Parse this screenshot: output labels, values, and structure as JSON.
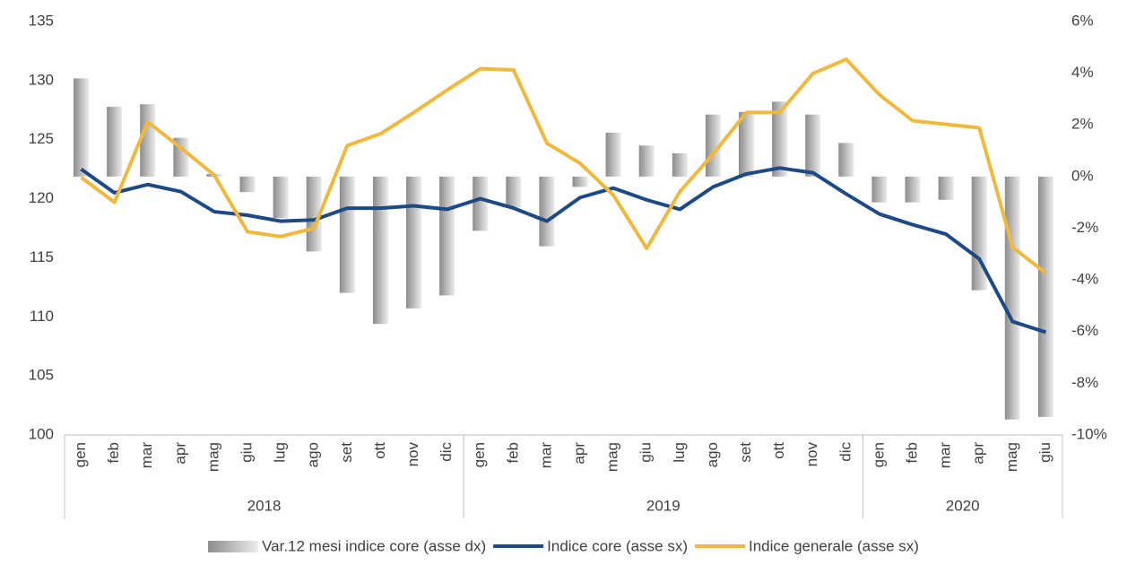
{
  "chart_data": {
    "type": "bar_line",
    "categories": [
      "gen",
      "feb",
      "mar",
      "apr",
      "mag",
      "giu",
      "lug",
      "ago",
      "set",
      "ott",
      "nov",
      "dic",
      "gen",
      "feb",
      "mar",
      "apr",
      "mag",
      "giu",
      "lug",
      "ago",
      "set",
      "ott",
      "nov",
      "dic",
      "gen",
      "feb",
      "mar",
      "apr",
      "mag",
      "giu"
    ],
    "years": [
      "2018",
      "2019",
      "2020"
    ],
    "series": [
      {
        "name": "Var.12 mesi indice core (asse dx)",
        "type": "bar",
        "axis": "y2",
        "color": "#a6a6a6",
        "values": [
          3.8,
          2.7,
          2.8,
          1.5,
          0.1,
          -0.6,
          -1.6,
          -2.9,
          -4.5,
          -5.7,
          -5.1,
          -4.6,
          -2.1,
          -1.2,
          -2.7,
          -0.4,
          1.7,
          1.2,
          0.9,
          2.4,
          2.5,
          2.9,
          2.4,
          1.3,
          -1.0,
          -1.0,
          -0.9,
          -4.4,
          -9.4,
          -9.3
        ]
      },
      {
        "name": "Indice core (asse sx)",
        "type": "line",
        "axis": "y",
        "color": "#1d4a85",
        "values": [
          122.5,
          120.5,
          121.2,
          120.6,
          118.9,
          118.6,
          118.1,
          118.2,
          119.2,
          119.2,
          119.4,
          119.1,
          120.0,
          119.2,
          118.1,
          120.1,
          120.9,
          119.9,
          119.1,
          121.0,
          122.1,
          122.6,
          122.2,
          120.4,
          118.7,
          117.8,
          117.0,
          114.9,
          109.6,
          108.7
        ]
      },
      {
        "name": "Indice generale (asse sx)",
        "type": "line",
        "axis": "y",
        "color": "#f0b93e",
        "values": [
          121.8,
          119.7,
          126.5,
          124.3,
          122.0,
          117.2,
          116.8,
          117.5,
          124.5,
          125.5,
          127.3,
          129.2,
          131.0,
          130.9,
          124.7,
          123.0,
          120.3,
          115.8,
          120.6,
          123.8,
          127.3,
          127.3,
          130.6,
          131.8,
          128.8,
          126.6,
          126.3,
          126.0,
          115.9,
          113.7
        ]
      }
    ],
    "ylim": [
      100,
      135
    ],
    "yticks": [
      100,
      105,
      110,
      115,
      120,
      125,
      130,
      135
    ],
    "y2lim": [
      -10,
      6
    ],
    "y2ticks": [
      {
        "value": -10,
        "label": "-10%"
      },
      {
        "value": -8,
        "label": "-8%"
      },
      {
        "value": -6,
        "label": "-6%"
      },
      {
        "value": -4,
        "label": "-4%"
      },
      {
        "value": -2,
        "label": "-2%"
      },
      {
        "value": 0,
        "label": "0%"
      },
      {
        "value": 2,
        "label": "2%"
      },
      {
        "value": 4,
        "label": "4%"
      },
      {
        "value": 6,
        "label": "6%"
      }
    ],
    "grid": false
  }
}
